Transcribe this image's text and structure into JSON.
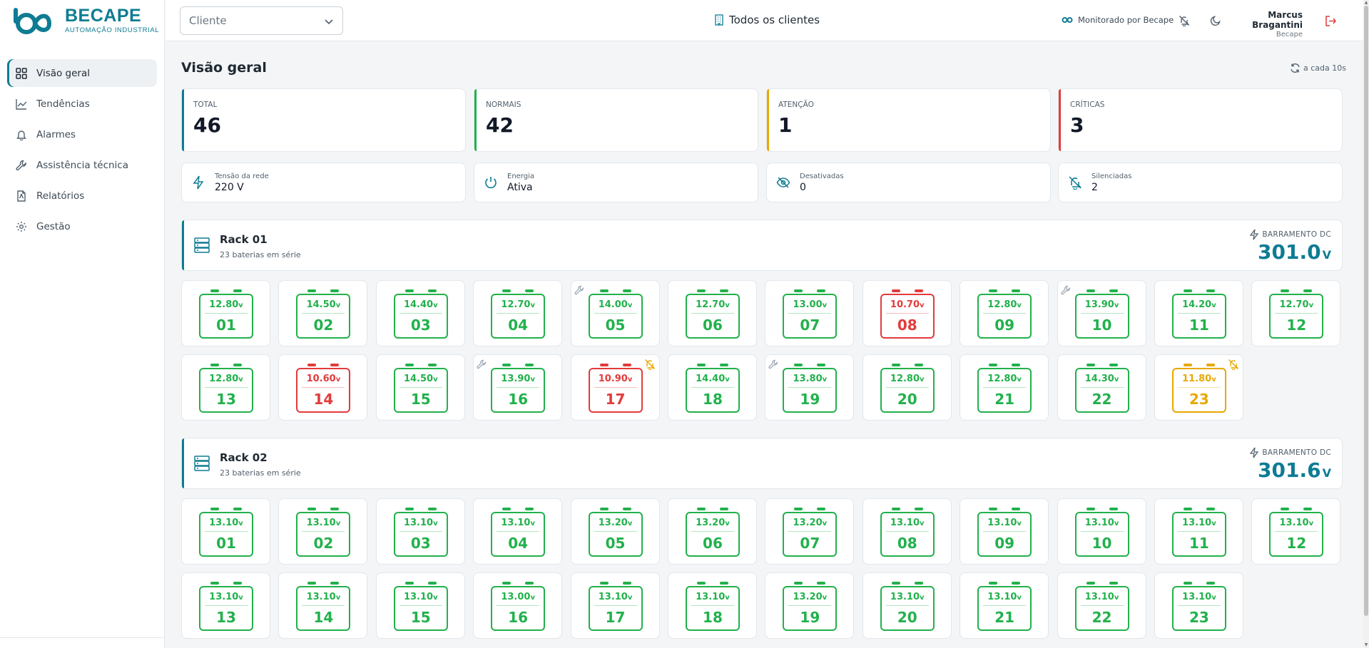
{
  "brand": {
    "name": "BECAPE",
    "tagline": "AUTOMAÇÃO INDUSTRIAL"
  },
  "sidebar": {
    "items": [
      {
        "label": "Visão geral",
        "icon": "grid-icon",
        "active": true
      },
      {
        "label": "Tendências",
        "icon": "trend-icon"
      },
      {
        "label": "Alarmes",
        "icon": "bell-icon"
      },
      {
        "label": "Assistência técnica",
        "icon": "wrench-icon"
      },
      {
        "label": "Relatórios",
        "icon": "document-icon"
      },
      {
        "label": "Gestão",
        "icon": "gear-icon"
      }
    ]
  },
  "header": {
    "client_placeholder": "Cliente",
    "all_clients": "Todos os clientes",
    "monitored": "Monitorado por Becape",
    "user_name": "Marcus Bragantini",
    "user_org": "Becape"
  },
  "page": {
    "title": "Visão geral",
    "refresh": "a cada 10s"
  },
  "stats": [
    {
      "label": "TOTAL",
      "value": "46",
      "status": "total"
    },
    {
      "label": "NORMAIS",
      "value": "42",
      "status": "normal"
    },
    {
      "label": "ATENÇÃO",
      "value": "1",
      "status": "warn"
    },
    {
      "label": "CRÍTICAS",
      "value": "3",
      "status": "crit"
    }
  ],
  "info": [
    {
      "label": "Tensão da rede",
      "value": "220 V",
      "icon": "bolt-icon"
    },
    {
      "label": "Energia",
      "value": "Ativa",
      "icon": "power-icon"
    },
    {
      "label": "Desativadas",
      "value": "0",
      "icon": "eye-off-icon"
    },
    {
      "label": "Silenciadas",
      "value": "2",
      "icon": "bell-off-icon"
    }
  ],
  "racks": [
    {
      "name": "Rack 01",
      "subtitle": "23 baterias em série",
      "bus_label": "BARRAMENTO DC",
      "bus_value": "301.0",
      "bus_unit": "V",
      "batteries": [
        {
          "num": "01",
          "volt": "12.80",
          "status": "ok"
        },
        {
          "num": "02",
          "volt": "14.50",
          "status": "ok"
        },
        {
          "num": "03",
          "volt": "14.40",
          "status": "ok"
        },
        {
          "num": "04",
          "volt": "12.70",
          "status": "ok"
        },
        {
          "num": "05",
          "volt": "14.00",
          "status": "ok",
          "maintenance": true
        },
        {
          "num": "06",
          "volt": "12.70",
          "status": "ok"
        },
        {
          "num": "07",
          "volt": "13.00",
          "status": "ok"
        },
        {
          "num": "08",
          "volt": "10.70",
          "status": "crit"
        },
        {
          "num": "09",
          "volt": "12.80",
          "status": "ok"
        },
        {
          "num": "10",
          "volt": "13.90",
          "status": "ok",
          "maintenance": true
        },
        {
          "num": "11",
          "volt": "14.20",
          "status": "ok"
        },
        {
          "num": "12",
          "volt": "12.70",
          "status": "ok"
        },
        {
          "num": "13",
          "volt": "12.80",
          "status": "ok"
        },
        {
          "num": "14",
          "volt": "10.60",
          "status": "crit"
        },
        {
          "num": "15",
          "volt": "14.50",
          "status": "ok"
        },
        {
          "num": "16",
          "volt": "13.90",
          "status": "ok",
          "maintenance": true
        },
        {
          "num": "17",
          "volt": "10.90",
          "status": "crit",
          "silenced": true
        },
        {
          "num": "18",
          "volt": "14.40",
          "status": "ok"
        },
        {
          "num": "19",
          "volt": "13.80",
          "status": "ok",
          "maintenance": true
        },
        {
          "num": "20",
          "volt": "12.80",
          "status": "ok"
        },
        {
          "num": "21",
          "volt": "12.80",
          "status": "ok"
        },
        {
          "num": "22",
          "volt": "14.30",
          "status": "ok"
        },
        {
          "num": "23",
          "volt": "11.80",
          "status": "warn",
          "silenced": true
        }
      ]
    },
    {
      "name": "Rack 02",
      "subtitle": "23 baterias em série",
      "bus_label": "BARRAMENTO DC",
      "bus_value": "301.6",
      "bus_unit": "V",
      "batteries": [
        {
          "num": "01",
          "volt": "13.10",
          "status": "ok"
        },
        {
          "num": "02",
          "volt": "13.10",
          "status": "ok"
        },
        {
          "num": "03",
          "volt": "13.10",
          "status": "ok"
        },
        {
          "num": "04",
          "volt": "13.10",
          "status": "ok"
        },
        {
          "num": "05",
          "volt": "13.20",
          "status": "ok"
        },
        {
          "num": "06",
          "volt": "13.20",
          "status": "ok"
        },
        {
          "num": "07",
          "volt": "13.20",
          "status": "ok"
        },
        {
          "num": "08",
          "volt": "13.10",
          "status": "ok"
        },
        {
          "num": "09",
          "volt": "13.10",
          "status": "ok"
        },
        {
          "num": "10",
          "volt": "13.10",
          "status": "ok"
        },
        {
          "num": "11",
          "volt": "13.10",
          "status": "ok"
        },
        {
          "num": "12",
          "volt": "13.10",
          "status": "ok"
        },
        {
          "num": "13",
          "volt": "13.10",
          "status": "ok"
        },
        {
          "num": "14",
          "volt": "13.10",
          "status": "ok"
        },
        {
          "num": "15",
          "volt": "13.10",
          "status": "ok"
        },
        {
          "num": "16",
          "volt": "13.00",
          "status": "ok"
        },
        {
          "num": "17",
          "volt": "13.10",
          "status": "ok"
        },
        {
          "num": "18",
          "volt": "13.10",
          "status": "ok"
        },
        {
          "num": "19",
          "volt": "13.20",
          "status": "ok"
        },
        {
          "num": "20",
          "volt": "13.10",
          "status": "ok"
        },
        {
          "num": "21",
          "volt": "13.10",
          "status": "ok"
        },
        {
          "num": "22",
          "volt": "13.10",
          "status": "ok"
        },
        {
          "num": "23",
          "volt": "13.10",
          "status": "ok"
        }
      ]
    }
  ],
  "colors": {
    "brand": "#0e7c93",
    "ok": "#22b14c",
    "warn": "#e8a800",
    "crit": "#e23b3b"
  }
}
